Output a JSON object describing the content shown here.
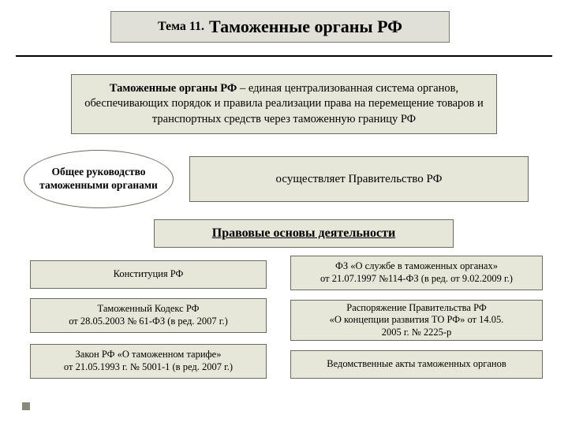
{
  "colors": {
    "box_fill": "#e6e7d8",
    "box_border": "#6b6b5c",
    "title_fill": "#e0e0d8",
    "page_bg": "#ffffff",
    "hr": "#000000",
    "dot": "#8a8a78"
  },
  "title": {
    "prefix": "Тема 11.",
    "main": "Таможенные органы РФ"
  },
  "definition": {
    "bold": "Таможенные органы РФ",
    "text": " – единая централизованная система органов, обеспечивающих порядок и правила реализации права на перемещение товаров и транспортных средств через таможенную границу РФ"
  },
  "ellipse_label": "Общее руководство таможенными органами",
  "gov_text": "осуществляет Правительство РФ",
  "legal_header": "Правовые основы деятельности",
  "left_items": [
    "Конституция РФ",
    "Таможенный Кодекс РФ\nот 28.05.2003 № 61-ФЗ (в ред. 2007 г.)",
    "Закон РФ «О таможенном тарифе»\nот 21.05.1993 г. № 5001-1 (в ред. 2007 г.)"
  ],
  "right_items": [
    "ФЗ «О службе в таможенных органах»\nот 21.07.1997 №114-ФЗ (в ред. от 9.02.2009 г.)",
    "Распоряжение Правительства РФ\n«О концепции развития ТО РФ» от 14.05.\n2005 г. № 2225-р",
    "Ведомственные акты таможенных органов"
  ]
}
